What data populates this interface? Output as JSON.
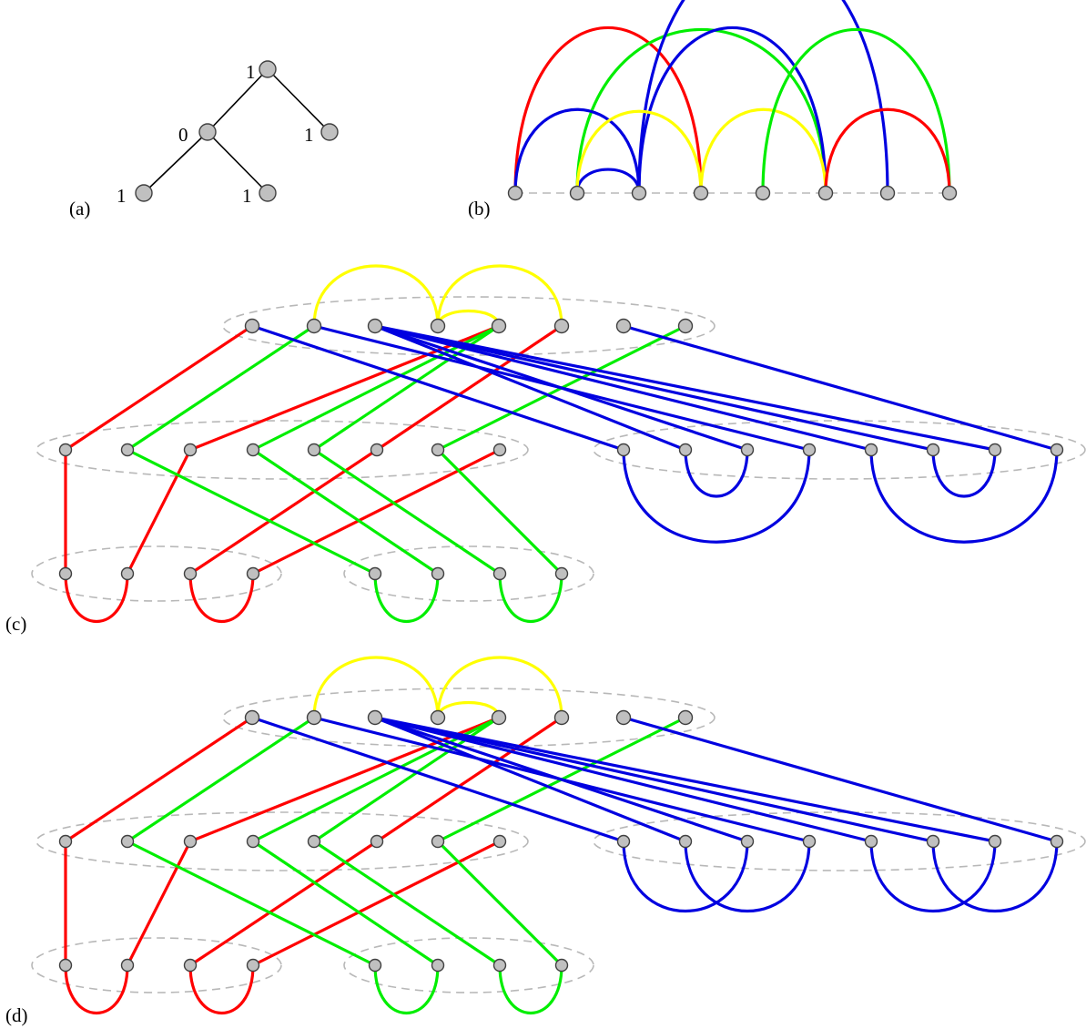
{
  "colors": {
    "red": "#ff0000",
    "green": "#00ee00",
    "blue": "#0000e0",
    "yellow": "#ffff00",
    "node_fill": "#c0c0c0",
    "dashed": "#b8b8b8"
  },
  "panels": {
    "a": {
      "label": "(a)",
      "node_labels": [
        "1",
        "0",
        "1",
        "1",
        "1"
      ]
    },
    "b": {
      "label": "(b)"
    },
    "c": {
      "label": "(c)"
    },
    "d": {
      "label": "(d)"
    }
  }
}
